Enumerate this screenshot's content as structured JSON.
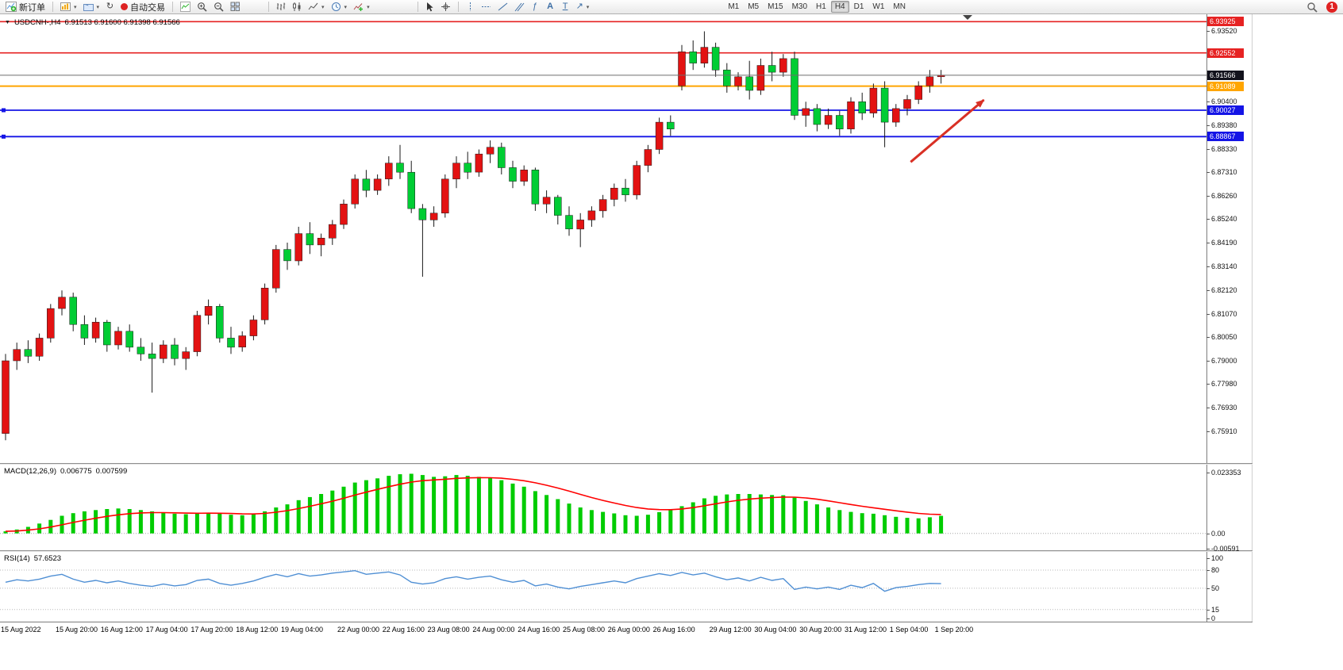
{
  "toolbar": {
    "new_order": "新订单",
    "autotrading": "自动交易",
    "timeframes": [
      "M1",
      "M5",
      "M15",
      "M30",
      "H1",
      "H4",
      "D1",
      "W1",
      "MN"
    ],
    "active_timeframe": "H4",
    "notification_count": "1"
  },
  "chart_data": [
    {
      "type": "candlestick",
      "title": "USDCNH-,H4",
      "symbol": "USDCNH-",
      "timeframe": "H4",
      "ohlc_display": "6.91513 6.91600 6.91398 6.91566",
      "open": 6.91513,
      "high": 6.916,
      "low": 6.91398,
      "close": 6.91566,
      "up_color": "#e31212",
      "down_color": "#00cd34",
      "wick_color": "#1a1a1a",
      "price_range": [
        6.745,
        6.9425
      ],
      "candles": [
        [
          6.758,
          6.793,
          6.755,
          6.79
        ],
        [
          6.79,
          6.798,
          6.786,
          6.795
        ],
        [
          6.795,
          6.799,
          6.789,
          6.792
        ],
        [
          6.792,
          6.802,
          6.79,
          6.8
        ],
        [
          6.8,
          6.815,
          6.798,
          6.813
        ],
        [
          6.813,
          6.821,
          6.81,
          6.818
        ],
        [
          6.818,
          6.82,
          6.803,
          6.806
        ],
        [
          6.806,
          6.81,
          6.797,
          6.8
        ],
        [
          6.8,
          6.809,
          6.798,
          6.807
        ],
        [
          6.807,
          6.808,
          6.794,
          6.797
        ],
        [
          6.797,
          6.805,
          6.795,
          6.803
        ],
        [
          6.803,
          6.806,
          6.794,
          6.796
        ],
        [
          6.796,
          6.8,
          6.79,
          6.793
        ],
        [
          6.793,
          6.798,
          6.776,
          6.791
        ],
        [
          6.791,
          6.799,
          6.789,
          6.797
        ],
        [
          6.797,
          6.8,
          6.788,
          6.791
        ],
        [
          6.791,
          6.796,
          6.786,
          6.794
        ],
        [
          6.794,
          6.812,
          6.792,
          6.81
        ],
        [
          6.81,
          6.817,
          6.806,
          6.814
        ],
        [
          6.814,
          6.815,
          6.798,
          6.8
        ],
        [
          6.8,
          6.805,
          6.793,
          6.796
        ],
        [
          6.796,
          6.803,
          6.794,
          6.801
        ],
        [
          6.801,
          6.81,
          6.799,
          6.808
        ],
        [
          6.808,
          6.824,
          6.806,
          6.822
        ],
        [
          6.822,
          6.841,
          6.82,
          6.839
        ],
        [
          6.839,
          6.842,
          6.83,
          6.834
        ],
        [
          6.834,
          6.849,
          6.832,
          6.846
        ],
        [
          6.846,
          6.851,
          6.837,
          6.841
        ],
        [
          6.841,
          6.846,
          6.836,
          6.844
        ],
        [
          6.844,
          6.852,
          6.841,
          6.85
        ],
        [
          6.85,
          6.861,
          6.848,
          6.859
        ],
        [
          6.859,
          6.872,
          6.857,
          6.87
        ],
        [
          6.87,
          6.874,
          6.862,
          6.865
        ],
        [
          6.865,
          6.872,
          6.863,
          6.87
        ],
        [
          6.87,
          6.88,
          6.867,
          6.877
        ],
        [
          6.877,
          6.885,
          6.87,
          6.873
        ],
        [
          6.873,
          6.878,
          6.855,
          6.857
        ],
        [
          6.857,
          6.859,
          6.827,
          6.852
        ],
        [
          6.852,
          6.858,
          6.849,
          6.855
        ],
        [
          6.855,
          6.872,
          6.853,
          6.87
        ],
        [
          6.87,
          6.88,
          6.866,
          6.877
        ],
        [
          6.877,
          6.882,
          6.87,
          6.873
        ],
        [
          6.873,
          6.883,
          6.871,
          6.881
        ],
        [
          6.881,
          6.887,
          6.877,
          6.884
        ],
        [
          6.884,
          6.886,
          6.872,
          6.875
        ],
        [
          6.875,
          6.878,
          6.866,
          6.869
        ],
        [
          6.869,
          6.876,
          6.867,
          6.874
        ],
        [
          6.874,
          6.875,
          6.856,
          6.859
        ],
        [
          6.859,
          6.865,
          6.855,
          6.862
        ],
        [
          6.862,
          6.863,
          6.85,
          6.854
        ],
        [
          6.854,
          6.858,
          6.845,
          6.848
        ],
        [
          6.848,
          6.855,
          6.84,
          6.852
        ],
        [
          6.852,
          6.858,
          6.849,
          6.856
        ],
        [
          6.856,
          6.863,
          6.853,
          6.861
        ],
        [
          6.861,
          6.868,
          6.858,
          6.866
        ],
        [
          6.866,
          6.87,
          6.86,
          6.863
        ],
        [
          6.863,
          6.878,
          6.861,
          6.876
        ],
        [
          6.876,
          6.885,
          6.873,
          6.883
        ],
        [
          6.883,
          6.897,
          6.881,
          6.895
        ],
        [
          6.895,
          6.898,
          6.889,
          6.892
        ],
        [
          6.911,
          6.929,
          6.909,
          6.926
        ],
        [
          6.926,
          6.931,
          6.918,
          6.921
        ],
        [
          6.921,
          6.935,
          6.919,
          6.928
        ],
        [
          6.928,
          6.93,
          6.915,
          6.918
        ],
        [
          6.918,
          6.921,
          6.908,
          6.911
        ],
        [
          6.911,
          6.917,
          6.909,
          6.915
        ],
        [
          6.915,
          6.922,
          6.905,
          6.909
        ],
        [
          6.909,
          6.923,
          6.907,
          6.92
        ],
        [
          6.92,
          6.926,
          6.913,
          6.917
        ],
        [
          6.917,
          6.925,
          6.915,
          6.923
        ],
        [
          6.923,
          6.926,
          6.896,
          6.898
        ],
        [
          6.898,
          6.904,
          6.893,
          6.901
        ],
        [
          6.901,
          6.903,
          6.891,
          6.894
        ],
        [
          6.894,
          6.901,
          6.892,
          6.898
        ],
        [
          6.898,
          6.9,
          6.889,
          6.892
        ],
        [
          6.892,
          6.906,
          6.89,
          6.904
        ],
        [
          6.904,
          6.908,
          6.896,
          6.899
        ],
        [
          6.899,
          6.912,
          6.897,
          6.91
        ],
        [
          6.91,
          6.913,
          6.884,
          6.895
        ],
        [
          6.895,
          6.903,
          6.893,
          6.901
        ],
        [
          6.901,
          6.907,
          6.898,
          6.905
        ],
        [
          6.905,
          6.913,
          6.903,
          6.911
        ],
        [
          6.911,
          6.918,
          6.908,
          6.915
        ],
        [
          6.915,
          6.918,
          6.912,
          6.91566
        ]
      ],
      "axis_labels": [
        "6.93520",
        "6.90400",
        "6.89380",
        "6.88330",
        "6.87310",
        "6.86260",
        "6.85240",
        "6.84190",
        "6.83140",
        "6.82120",
        "6.81070",
        "6.80050",
        "6.79000",
        "6.77980",
        "6.76930",
        "6.75910"
      ],
      "levels": [
        {
          "price": 6.93925,
          "label": "6.93925",
          "color": "#e62222",
          "width": 1.6,
          "badge": "#e62222"
        },
        {
          "price": 6.92552,
          "label": "6.92552",
          "color": "#e62222",
          "width": 1.6,
          "badge": "#e62222"
        },
        {
          "price": 6.91566,
          "label": "6.91566",
          "color": "#6e6e6e",
          "width": 1,
          "badge": "#12121c",
          "bid": true
        },
        {
          "price": 6.91089,
          "label": "6.91089",
          "color": "#ffa500",
          "width": 2,
          "badge": "#ffa500"
        },
        {
          "price": 6.90027,
          "label": "6.90027",
          "color": "#1414e6",
          "width": 1.8,
          "badge": "#1414e6",
          "handle": true
        },
        {
          "price": 6.88867,
          "label": "6.88867",
          "color": "#1414e6",
          "width": 1.8,
          "badge": "#1414e6",
          "handle": true
        }
      ],
      "x_labels": [
        {
          "i": 0,
          "t": "15 Aug 2022"
        },
        {
          "i": 5,
          "t": "15 Aug 20:00"
        },
        {
          "i": 9,
          "t": "16 Aug 12:00"
        },
        {
          "i": 13,
          "t": "17 Aug 04:00"
        },
        {
          "i": 17,
          "t": "17 Aug 20:00"
        },
        {
          "i": 21,
          "t": "18 Aug 12:00"
        },
        {
          "i": 25,
          "t": "19 Aug 04:00"
        },
        {
          "i": 30,
          "t": "22 Aug 00:00"
        },
        {
          "i": 34,
          "t": "22 Aug 16:00"
        },
        {
          "i": 38,
          "t": "23 Aug 08:00"
        },
        {
          "i": 42,
          "t": "24 Aug 00:00"
        },
        {
          "i": 46,
          "t": "24 Aug 16:00"
        },
        {
          "i": 50,
          "t": "25 Aug 08:00"
        },
        {
          "i": 54,
          "t": "26 Aug 00:00"
        },
        {
          "i": 58,
          "t": "26 Aug 16:00"
        },
        {
          "i": 63,
          "t": "29 Aug 12:00"
        },
        {
          "i": 67,
          "t": "30 Aug 04:00"
        },
        {
          "i": 71,
          "t": "30 Aug 20:00"
        },
        {
          "i": 75,
          "t": "31 Aug 12:00"
        },
        {
          "i": 79,
          "t": "1 Sep 04:00"
        },
        {
          "i": 83,
          "t": "1 Sep 20:00"
        }
      ],
      "arrow": {
        "from": [
          80.3,
          6.8775
        ],
        "to": [
          86.8,
          6.9048
        ],
        "color": "#d93025"
      }
    },
    {
      "type": "bar",
      "name": "MACD(12,26,9)",
      "value_main": "0.006775",
      "value_signal": "0.007599",
      "bar_color": "#00cc00",
      "signal_color": "#ff0000",
      "range": [
        -0.0065,
        0.0265
      ],
      "axis_labels": [
        {
          "v": 0.023353,
          "t": "0.023353"
        },
        {
          "v": 0,
          "t": "0.00"
        },
        {
          "v": -0.00591,
          "t": "-0.00591"
        }
      ],
      "values": [
        0.0008,
        0.0015,
        0.0025,
        0.0038,
        0.0052,
        0.0068,
        0.0078,
        0.0085,
        0.009,
        0.0094,
        0.0096,
        0.0094,
        0.009,
        0.0085,
        0.008,
        0.0076,
        0.0074,
        0.0076,
        0.0079,
        0.0077,
        0.0072,
        0.007,
        0.0074,
        0.0085,
        0.01,
        0.0112,
        0.0128,
        0.014,
        0.0152,
        0.0165,
        0.018,
        0.0196,
        0.0205,
        0.0212,
        0.0222,
        0.0228,
        0.023,
        0.0225,
        0.0218,
        0.022,
        0.0225,
        0.0222,
        0.0218,
        0.0214,
        0.0205,
        0.0192,
        0.018,
        0.0163,
        0.0148,
        0.0132,
        0.0115,
        0.01,
        0.009,
        0.0083,
        0.0077,
        0.007,
        0.0068,
        0.0072,
        0.0082,
        0.009,
        0.0105,
        0.012,
        0.0135,
        0.0145,
        0.015,
        0.0152,
        0.0152,
        0.015,
        0.0148,
        0.0147,
        0.0138,
        0.0125,
        0.0112,
        0.01,
        0.009,
        0.0083,
        0.0078,
        0.0076,
        0.007,
        0.0064,
        0.006,
        0.0058,
        0.0062,
        0.006775
      ]
    },
    {
      "type": "line",
      "name": "RSI(14)",
      "value": "57.6523",
      "line_color": "#4f8fd4",
      "range": [
        0,
        100
      ],
      "levels": [
        80,
        50,
        15
      ],
      "axis_labels": [
        {
          "v": 100,
          "t": "100"
        },
        {
          "v": 80,
          "t": "80"
        },
        {
          "v": 50,
          "t": "50"
        },
        {
          "v": 15,
          "t": "15"
        },
        {
          "v": 0,
          "t": "0"
        }
      ],
      "values": [
        60,
        64,
        62,
        65,
        70,
        73,
        65,
        60,
        63,
        59,
        62,
        58,
        55,
        53,
        57,
        54,
        56,
        63,
        65,
        58,
        55,
        58,
        62,
        68,
        73,
        69,
        74,
        70,
        72,
        75,
        77,
        79,
        73,
        75,
        77,
        72,
        60,
        57,
        59,
        66,
        69,
        65,
        68,
        70,
        64,
        60,
        63,
        54,
        57,
        52,
        49,
        53,
        56,
        59,
        62,
        59,
        66,
        70,
        74,
        71,
        76,
        72,
        75,
        69,
        64,
        67,
        62,
        68,
        63,
        66,
        48,
        52,
        49,
        52,
        48,
        55,
        51,
        58,
        45,
        51,
        53,
        56,
        58,
        57.65
      ]
    }
  ]
}
